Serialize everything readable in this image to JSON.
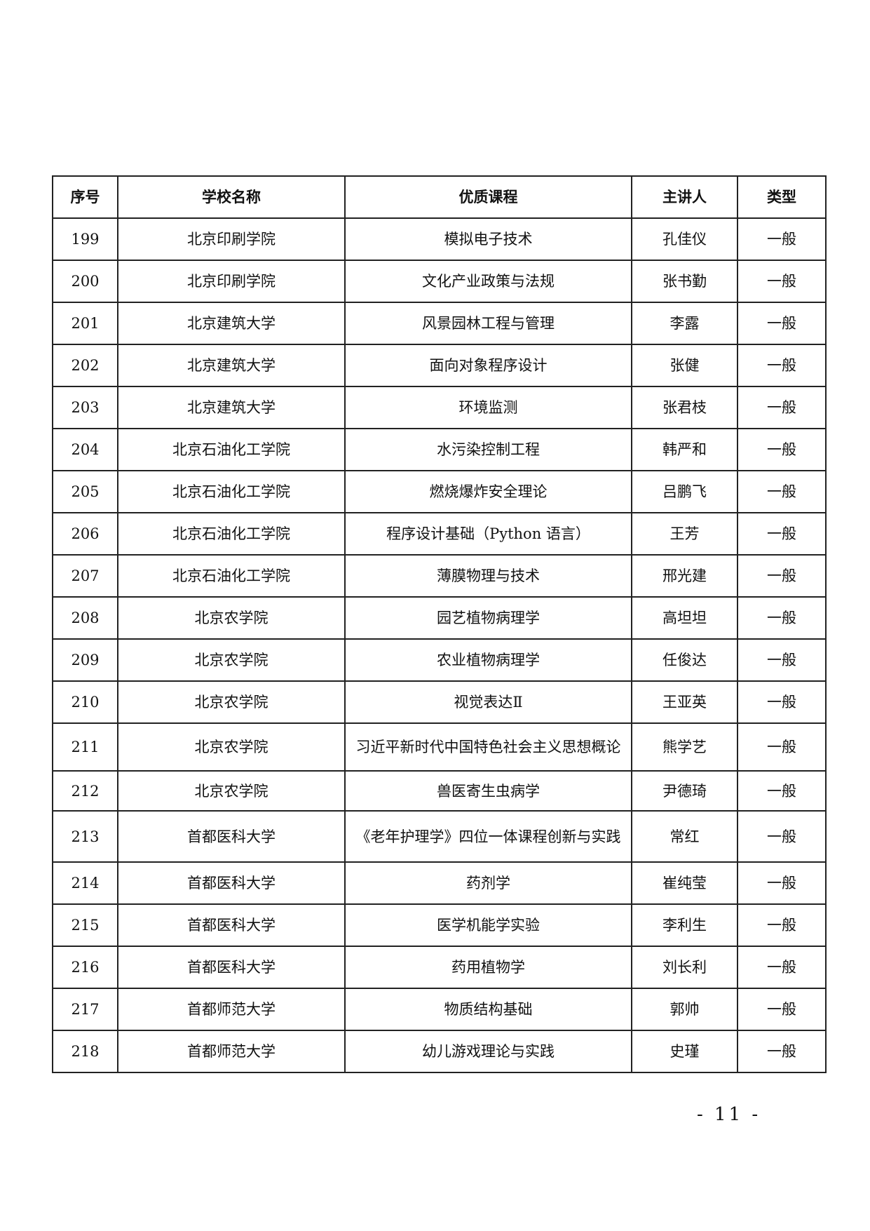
{
  "table": {
    "headers": [
      "序号",
      "学校名称",
      "优质课程",
      "主讲人",
      "类型"
    ],
    "rows": [
      [
        "199",
        "北京印刷学院",
        "模拟电子技术",
        "孔佳仪",
        "一般"
      ],
      [
        "200",
        "北京印刷学院",
        "文化产业政策与法规",
        "张书勤",
        "一般"
      ],
      [
        "201",
        "北京建筑大学",
        "风景园林工程与管理",
        "李露",
        "一般"
      ],
      [
        "202",
        "北京建筑大学",
        "面向对象程序设计",
        "张健",
        "一般"
      ],
      [
        "203",
        "北京建筑大学",
        "环境监测",
        "张君枝",
        "一般"
      ],
      [
        "204",
        "北京石油化工学院",
        "水污染控制工程",
        "韩严和",
        "一般"
      ],
      [
        "205",
        "北京石油化工学院",
        "燃烧爆炸安全理论",
        "吕鹏飞",
        "一般"
      ],
      [
        "206",
        "北京石油化工学院",
        "程序设计基础（Python 语言）",
        "王芳",
        "一般"
      ],
      [
        "207",
        "北京石油化工学院",
        "薄膜物理与技术",
        "邢光建",
        "一般"
      ],
      [
        "208",
        "北京农学院",
        "园艺植物病理学",
        "高坦坦",
        "一般"
      ],
      [
        "209",
        "北京农学院",
        "农业植物病理学",
        "任俊达",
        "一般"
      ],
      [
        "210",
        "北京农学院",
        "视觉表达Ⅱ",
        "王亚英",
        "一般"
      ],
      [
        "211",
        "北京农学院",
        "习近平新时代中国特色社会主义思想概论",
        "熊学艺",
        "一般"
      ],
      [
        "212",
        "北京农学院",
        "兽医寄生虫病学",
        "尹德琦",
        "一般"
      ],
      [
        "213",
        "首都医科大学",
        "《老年护理学》四位一体课程创新与实践",
        "常红",
        "一般"
      ],
      [
        "214",
        "首都医科大学",
        "药剂学",
        "崔纯莹",
        "一般"
      ],
      [
        "215",
        "首都医科大学",
        "医学机能学实验",
        "李利生",
        "一般"
      ],
      [
        "216",
        "首都医科大学",
        "药用植物学",
        "刘长利",
        "一般"
      ],
      [
        "217",
        "首都师范大学",
        "物质结构基础",
        "郭帅",
        "一般"
      ],
      [
        "218",
        "首都师范大学",
        "幼儿游戏理论与实践",
        "史瑾",
        "一般"
      ]
    ]
  },
  "page_number": "- 11 -"
}
